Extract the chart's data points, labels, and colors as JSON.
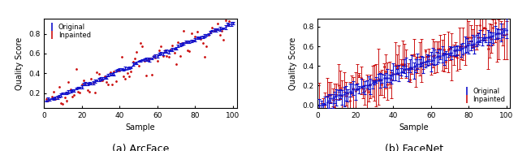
{
  "arcface": {
    "xlabel": "Sample",
    "ylabel": "Quality Score",
    "xlim": [
      0,
      102
    ],
    "ylim": [
      0.05,
      0.95
    ],
    "yticks": [
      0.2,
      0.4,
      0.6,
      0.8
    ],
    "xticks": [
      0,
      20,
      40,
      60,
      80,
      100
    ],
    "original_color": "#1111cc",
    "inpainted_color": "#cc1111",
    "legend_loc": "upper left"
  },
  "facenet": {
    "xlabel": "Sample",
    "ylabel": "Quality Score",
    "xlim": [
      0,
      102
    ],
    "ylim": [
      -0.03,
      0.88
    ],
    "yticks": [
      0.0,
      0.2,
      0.4,
      0.6,
      0.8
    ],
    "xticks": [
      0,
      20,
      40,
      60,
      80,
      100
    ],
    "original_color": "#1111cc",
    "inpainted_color": "#cc1111",
    "legend_loc": "lower right"
  },
  "original_label": "Original",
  "inpainted_label": "Inpainted",
  "figure_caption_arcface": "(a) ArcFace",
  "figure_caption_facenet": "(b) FaceNet"
}
